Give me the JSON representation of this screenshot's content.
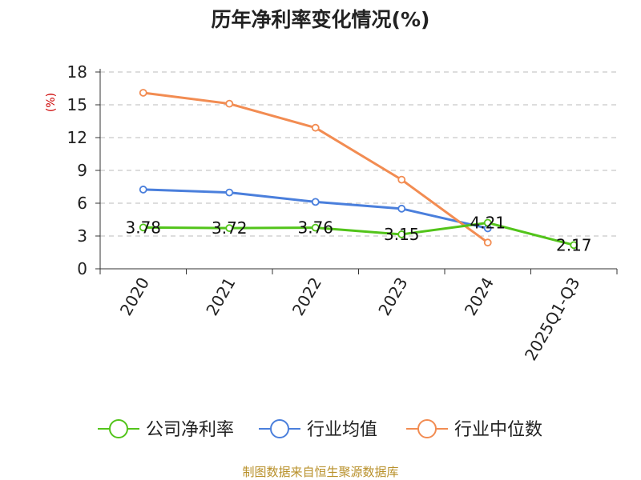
{
  "chart_data": {
    "type": "line",
    "title": "历年净利率变化情况(%)",
    "ylabel": "(%)",
    "categories": [
      "2020",
      "2021",
      "2022",
      "2023",
      "2024",
      "2025Q1-Q3"
    ],
    "ylim": [
      0,
      18
    ],
    "yticks": [
      0,
      3,
      6,
      9,
      12,
      15,
      18
    ],
    "grid": true,
    "legend_position": "bottom",
    "series": [
      {
        "name": "公司净利率",
        "color": "#52c41a",
        "values": [
          3.78,
          3.72,
          3.76,
          3.15,
          4.21,
          2.17
        ],
        "labels": [
          "3.78",
          "3.72",
          "3.76",
          "3.15",
          "4.21",
          "2.17"
        ]
      },
      {
        "name": "行业均值",
        "color": "#4a7fdc",
        "values": [
          7.25,
          6.98,
          6.12,
          5.5,
          3.7,
          null
        ],
        "labels": []
      },
      {
        "name": "行业中位数",
        "color": "#f28c52",
        "values": [
          16.1,
          15.1,
          12.9,
          8.15,
          2.4,
          null
        ],
        "labels": []
      }
    ]
  },
  "footer": {
    "source": "制图数据来自恒生聚源数据库"
  }
}
